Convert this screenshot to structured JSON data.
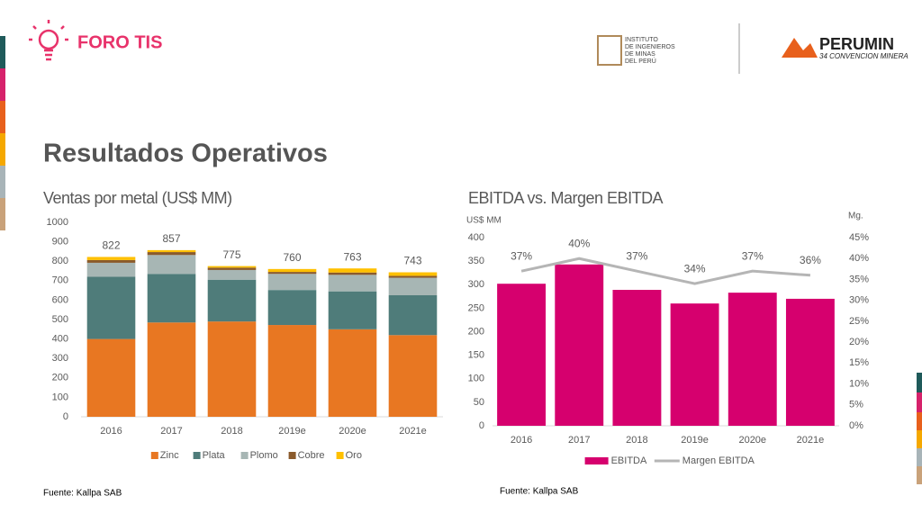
{
  "header": {
    "brand": "FORO TIS",
    "title": "Resultados Operativos",
    "institute": [
      "INSTITUTO",
      "DE INGENIEROS",
      "DE MINAS",
      "DEL PERÚ"
    ],
    "event": "PERUMIN",
    "event_subtitle": "34 CONVENCION MINERA"
  },
  "sources": [
    "Fuente: Kallpa SAB",
    "Fuente: Kallpa SAB"
  ],
  "chart_data": [
    {
      "type": "bar",
      "stacked": true,
      "title": "Ventas por metal (US$ MM)",
      "categories": [
        "2016",
        "2017",
        "2018",
        "2019e",
        "2020e",
        "2021e"
      ],
      "series": [
        {
          "name": "Zinc",
          "color": "#e87722",
          "values": [
            400,
            485,
            490,
            472,
            450,
            420
          ]
        },
        {
          "name": "Plata",
          "color": "#4f7c7a",
          "values": [
            320,
            250,
            215,
            180,
            195,
            205
          ]
        },
        {
          "name": "Plomo",
          "color": "#a7b6b4",
          "values": [
            72,
            97,
            50,
            83,
            85,
            90
          ]
        },
        {
          "name": "Cobre",
          "color": "#8a5a2b",
          "values": [
            14,
            15,
            12,
            10,
            12,
            10
          ]
        },
        {
          "name": "Oro",
          "color": "#ffc000",
          "values": [
            16,
            10,
            8,
            15,
            21,
            18
          ]
        }
      ],
      "totals": [
        822,
        857,
        775,
        760,
        763,
        743
      ],
      "ylim": [
        0,
        1000
      ],
      "yticks": [
        0,
        100,
        200,
        300,
        400,
        500,
        600,
        700,
        800,
        900,
        1000
      ],
      "legend": "bottom"
    },
    {
      "type": "bar",
      "title": "EBITDA vs. Margen EBITDA",
      "ylabel": "US$ MM",
      "y2label": "Mg.",
      "categories": [
        "2016",
        "2017",
        "2018",
        "2019e",
        "2020e",
        "2021e"
      ],
      "series": [
        {
          "name": "EBITDA",
          "color": "#d6006e",
          "values": [
            302,
            343,
            289,
            260,
            283,
            270
          ]
        },
        {
          "name": "Margen EBITDA",
          "type": "line",
          "axis": "y2",
          "color": "#b5b5b5",
          "values": [
            37,
            40,
            37,
            34,
            37,
            36
          ],
          "value_labels": [
            "37%",
            "40%",
            "37%",
            "34%",
            "37%",
            "36%"
          ]
        }
      ],
      "ylim": [
        0,
        400
      ],
      "yticks": [
        0,
        50,
        100,
        150,
        200,
        250,
        300,
        350,
        400
      ],
      "y2lim": [
        0,
        45
      ],
      "y2ticks": [
        {
          "value": 0,
          "label": "0%"
        },
        {
          "value": 5,
          "label": "5%"
        },
        {
          "value": 10,
          "label": "10%"
        },
        {
          "value": 15,
          "label": "15%"
        },
        {
          "value": 20,
          "label": "20%"
        },
        {
          "value": 25,
          "label": "25%"
        },
        {
          "value": 30,
          "label": "30%"
        },
        {
          "value": 35,
          "label": "35%"
        },
        {
          "value": 40,
          "label": "40%"
        },
        {
          "value": 45,
          "label": "45%"
        }
      ],
      "legend": "bottom"
    }
  ]
}
